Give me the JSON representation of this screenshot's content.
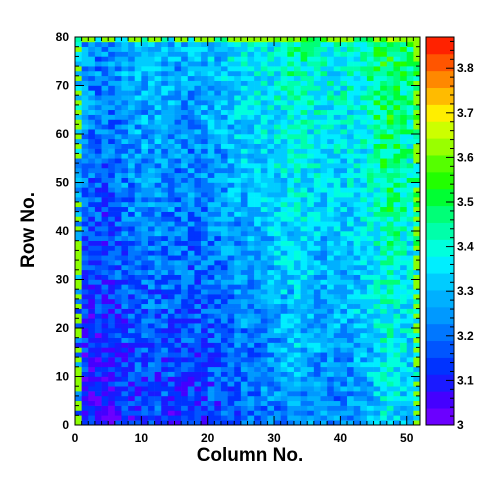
{
  "chart_data": {
    "type": "heatmap",
    "xlabel": "Column No.",
    "ylabel": "Row No.",
    "xlim": [
      0,
      52
    ],
    "ylim": [
      0,
      80
    ],
    "n_columns": 52,
    "n_rows": 80,
    "x_ticks": [
      0,
      10,
      20,
      30,
      40,
      50
    ],
    "y_ticks": [
      0,
      10,
      20,
      30,
      40,
      50,
      60,
      70,
      80
    ],
    "colorbar": {
      "min": 3.0,
      "max": 3.87,
      "ticks": [
        3,
        3.1,
        3.2,
        3.3,
        3.4,
        3.5,
        3.6,
        3.7,
        3.8
      ],
      "palette": [
        "#6b00ff",
        "#4400ff",
        "#1a1aff",
        "#0033ff",
        "#0055ff",
        "#0077ff",
        "#0099ff",
        "#00b0ff",
        "#00ccff",
        "#00eeff",
        "#00ffdd",
        "#00ffaa",
        "#00ff77",
        "#00ff33",
        "#22ff00",
        "#55ff00",
        "#99ff00",
        "#ccff00",
        "#ffee00",
        "#ffbb00",
        "#ff8800",
        "#ff5500",
        "#ff2200"
      ]
    },
    "frame_color": "#000000",
    "edge_cell_color": "#8cff00",
    "value_model": {
      "description_of_trend": "",
      "base": 3.06,
      "column_profile": [
        [
          0,
          0.06
        ],
        [
          2,
          0.02
        ],
        [
          5,
          0.0
        ],
        [
          8,
          0.06
        ],
        [
          12,
          0.08
        ],
        [
          16,
          0.05
        ],
        [
          20,
          0.07
        ],
        [
          25,
          0.12
        ],
        [
          30,
          0.16
        ],
        [
          33,
          0.2
        ],
        [
          36,
          0.17
        ],
        [
          40,
          0.16
        ],
        [
          44,
          0.2
        ],
        [
          47,
          0.3
        ],
        [
          50,
          0.24
        ],
        [
          52,
          0.22
        ]
      ],
      "row_gradient_per_row": 0.0022,
      "noise_amplitude": 0.09
    }
  }
}
